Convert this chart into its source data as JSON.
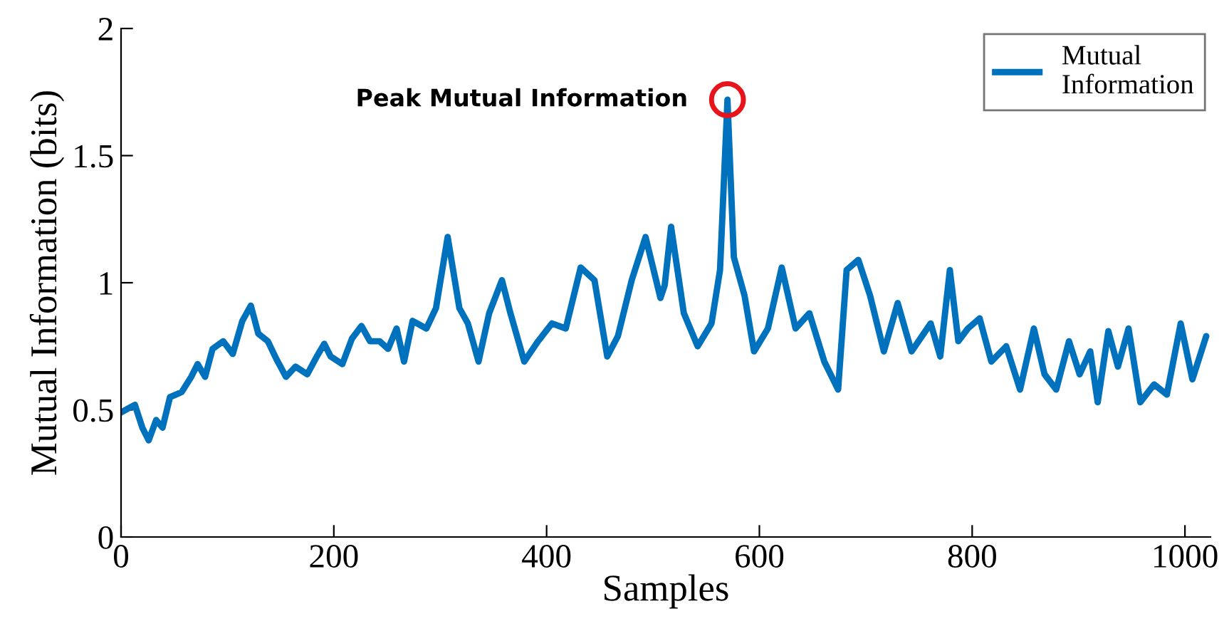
{
  "chart_data": {
    "type": "line",
    "xlabel": "Samples",
    "ylabel": "Mutual Information (bits)",
    "xlim": [
      0,
      1024
    ],
    "ylim": [
      0,
      2
    ],
    "xticks": [
      0,
      200,
      400,
      600,
      800,
      1000
    ],
    "yticks": [
      0,
      0.5,
      1,
      1.5,
      2
    ],
    "grid": false,
    "legend": "top right",
    "line_style": "solid",
    "marker": "none",
    "annotations": [
      {
        "text": "Peak Mutual Information",
        "x": 570,
        "y": 1.72
      }
    ],
    "series": [
      {
        "name": "Mutual Information",
        "color": "#0072bd",
        "x": [
          0,
          13,
          20,
          26,
          33,
          39,
          46,
          57,
          66,
          72,
          79,
          86,
          96,
          105,
          114,
          122,
          129,
          138,
          146,
          155,
          164,
          175,
          184,
          191,
          197,
          208,
          217,
          226,
          234,
          243,
          251,
          259,
          266,
          274,
          287,
          296,
          307,
          318,
          326,
          336,
          346,
          358,
          366,
          379,
          392,
          405,
          418,
          432,
          445,
          457,
          467,
          480,
          493,
          507,
          511,
          517,
          529,
          542,
          555,
          563,
          570,
          576,
          586,
          595,
          608,
          621,
          634,
          647,
          661,
          674,
          682,
          693,
          704,
          717,
          730,
          743,
          761,
          770,
          779,
          787,
          796,
          807,
          818,
          832,
          845,
          858,
          868,
          879,
          891,
          901,
          911,
          918,
          928,
          937,
          947,
          958,
          971,
          983,
          996,
          1007,
          1020
        ],
        "values": [
          0.49,
          0.52,
          0.43,
          0.38,
          0.46,
          0.43,
          0.55,
          0.57,
          0.63,
          0.68,
          0.63,
          0.74,
          0.77,
          0.72,
          0.85,
          0.91,
          0.8,
          0.77,
          0.7,
          0.63,
          0.67,
          0.64,
          0.71,
          0.76,
          0.71,
          0.68,
          0.78,
          0.83,
          0.77,
          0.77,
          0.74,
          0.82,
          0.69,
          0.85,
          0.82,
          0.9,
          1.18,
          0.9,
          0.84,
          0.69,
          0.88,
          1.01,
          0.88,
          0.69,
          0.77,
          0.84,
          0.82,
          1.06,
          1.01,
          0.71,
          0.79,
          1.01,
          1.18,
          0.94,
          0.99,
          1.22,
          0.88,
          0.75,
          0.84,
          1.05,
          1.72,
          1.1,
          0.95,
          0.73,
          0.82,
          1.06,
          0.82,
          0.88,
          0.69,
          0.58,
          1.05,
          1.09,
          0.95,
          0.73,
          0.92,
          0.73,
          0.84,
          0.71,
          1.05,
          0.77,
          0.82,
          0.86,
          0.69,
          0.75,
          0.58,
          0.82,
          0.64,
          0.58,
          0.77,
          0.64,
          0.73,
          0.53,
          0.81,
          0.67,
          0.82,
          0.53,
          0.6,
          0.56,
          0.84,
          0.62,
          0.79
        ]
      }
    ]
  }
}
